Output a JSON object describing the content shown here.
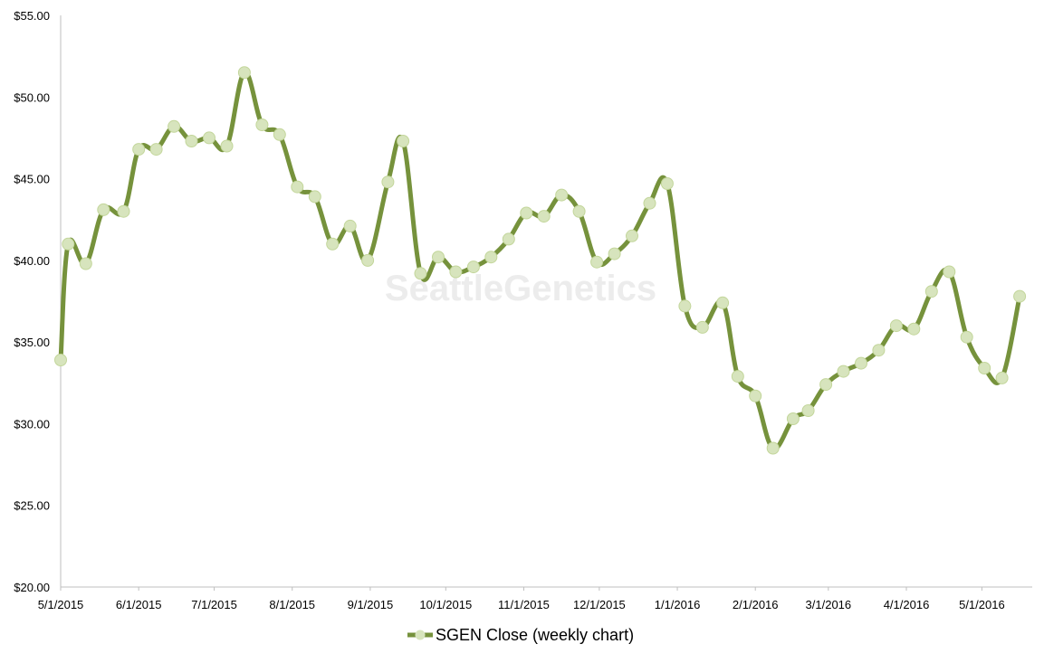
{
  "chart_data": {
    "type": "line",
    "watermark": "SeattleGenetics",
    "ylim": [
      20,
      55
    ],
    "y_ticks": [
      "$20.00",
      "$25.00",
      "$30.00",
      "$35.00",
      "$40.00",
      "$45.00",
      "$50.00",
      "$55.00"
    ],
    "y_tick_values": [
      20,
      25,
      30,
      35,
      40,
      45,
      50,
      55
    ],
    "x_ticks": [
      "5/1/2015",
      "6/1/2015",
      "7/1/2015",
      "8/1/2015",
      "9/1/2015",
      "10/1/2015",
      "11/1/2015",
      "12/1/2015",
      "1/1/2016",
      "2/1/2016",
      "3/1/2016",
      "4/1/2016",
      "5/1/2016"
    ],
    "xlim": [
      "2015-05-01",
      "2016-05-21"
    ],
    "grid": false,
    "legend_position": "bottom",
    "line_color": "#76923c",
    "marker_color": "#d7e4bd",
    "series": [
      {
        "name": "SGEN Close (weekly chart)",
        "x": [
          "2015-05-01",
          "2015-05-04",
          "2015-05-11",
          "2015-05-18",
          "2015-05-26",
          "2015-06-01",
          "2015-06-08",
          "2015-06-15",
          "2015-06-22",
          "2015-06-29",
          "2015-07-06",
          "2015-07-13",
          "2015-07-20",
          "2015-07-27",
          "2015-08-03",
          "2015-08-10",
          "2015-08-17",
          "2015-08-24",
          "2015-08-31",
          "2015-09-08",
          "2015-09-14",
          "2015-09-21",
          "2015-09-28",
          "2015-10-05",
          "2015-10-12",
          "2015-10-19",
          "2015-10-26",
          "2015-11-02",
          "2015-11-09",
          "2015-11-16",
          "2015-11-23",
          "2015-11-30",
          "2015-12-07",
          "2015-12-14",
          "2015-12-21",
          "2015-12-28",
          "2016-01-04",
          "2016-01-11",
          "2016-01-19",
          "2016-01-25",
          "2016-02-01",
          "2016-02-08",
          "2016-02-16",
          "2016-02-22",
          "2016-02-29",
          "2016-03-07",
          "2016-03-14",
          "2016-03-21",
          "2016-03-28",
          "2016-04-04",
          "2016-04-11",
          "2016-04-18",
          "2016-04-25",
          "2016-05-02",
          "2016-05-09",
          "2016-05-16"
        ],
        "values": [
          33.9,
          41.0,
          39.8,
          43.1,
          43.0,
          46.8,
          46.8,
          48.2,
          47.3,
          47.5,
          47.0,
          51.5,
          48.3,
          47.7,
          44.5,
          43.9,
          41.0,
          42.1,
          40.0,
          44.8,
          47.3,
          39.2,
          40.2,
          39.3,
          39.6,
          40.2,
          41.3,
          42.9,
          42.7,
          44.0,
          43.0,
          39.9,
          40.4,
          41.5,
          43.5,
          44.7,
          37.2,
          35.9,
          37.4,
          32.9,
          31.7,
          28.5,
          30.3,
          30.8,
          32.4,
          33.2,
          33.7,
          34.5,
          36.0,
          35.8,
          38.1,
          39.3,
          35.3,
          33.4,
          32.8,
          37.8
        ]
      }
    ]
  }
}
